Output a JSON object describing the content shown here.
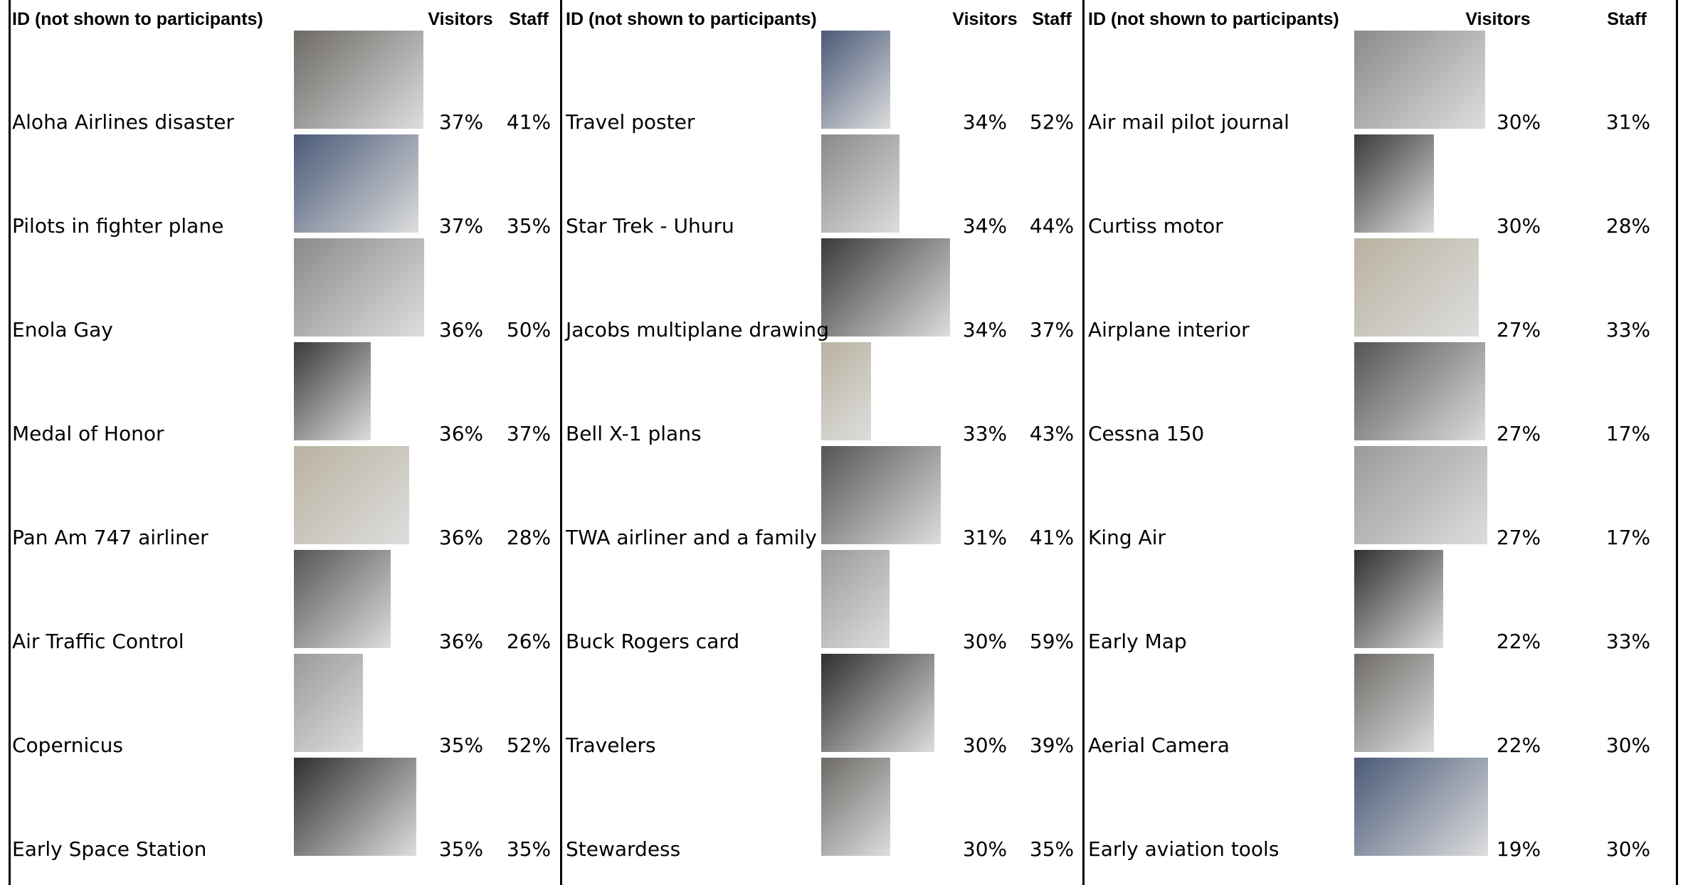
{
  "tables": [
    {
      "header": [
        "ID (not shown to participants)",
        "Visitors",
        "Staff"
      ],
      "rows": [
        [
          "Aloha Airlines disaster",
          "37%",
          "41%"
        ],
        [
          "Pilots in fighter plane",
          "37%",
          "35%"
        ],
        [
          "Enola Gay",
          "36%",
          "50%"
        ],
        [
          "Medal of Honor",
          "36%",
          "37%"
        ],
        [
          "Pan Am 747 airliner",
          "36%",
          "28%"
        ],
        [
          "Air Traffic Control",
          "36%",
          "26%"
        ],
        [
          "Copernicus",
          "35%",
          "52%"
        ],
        [
          "Early Space Station",
          "35%",
          "35%"
        ]
      ]
    },
    {
      "header": [
        "ID (not shown to participants)",
        "Visitors",
        "Staff"
      ],
      "rows": [
        [
          "Travel poster",
          "34%",
          "52%"
        ],
        [
          "Star Trek - Uhuru",
          "34%",
          "44%"
        ],
        [
          "Jacobs multiplane drawing",
          "34%",
          "37%"
        ],
        [
          "Bell X-1 plans",
          "33%",
          "43%"
        ],
        [
          "TWA airliner and a family",
          "31%",
          "41%"
        ],
        [
          "Buck Rogers card",
          "30%",
          "59%"
        ],
        [
          "Travelers",
          "30%",
          "39%"
        ],
        [
          "Stewardess",
          "30%",
          "35%"
        ]
      ]
    },
    {
      "header": [
        "ID (not shown to participants)",
        "Visitors",
        "Staff"
      ],
      "rows": [
        [
          "Air mail pilot journal",
          "30%",
          "31%"
        ],
        [
          "Curtiss motor",
          "30%",
          "28%"
        ],
        [
          "Airplane interior",
          "27%",
          "33%"
        ],
        [
          "Cessna 150",
          "27%",
          "17%"
        ],
        [
          "King Air",
          "27%",
          "17%"
        ],
        [
          "Early Map",
          "22%",
          "33%"
        ],
        [
          "Aerial Camera",
          "22%",
          "30%"
        ],
        [
          "Early aviation tools",
          "19%",
          "30%"
        ]
      ]
    }
  ]
}
